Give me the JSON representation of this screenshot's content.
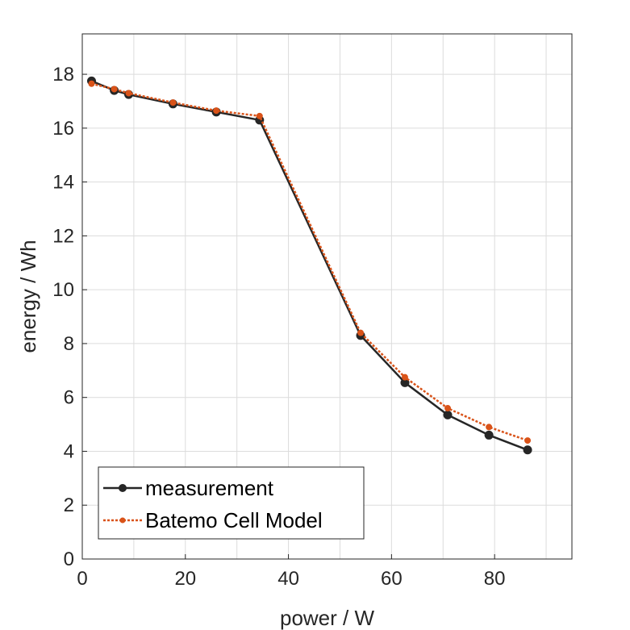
{
  "chart_data": {
    "type": "line",
    "title": "",
    "xlabel": "power / W",
    "ylabel": "energy / Wh",
    "xlim": [
      0,
      95
    ],
    "ylim": [
      0,
      19.5
    ],
    "xticks": [
      0,
      20,
      40,
      60,
      80
    ],
    "yticks": [
      0,
      2,
      4,
      6,
      8,
      10,
      12,
      14,
      16,
      18
    ],
    "grid": true,
    "legend_position": "bottom-left",
    "series": [
      {
        "name": "measurement",
        "color": "#262626",
        "line_style": "solid",
        "marker": "circle",
        "x": [
          1.8,
          6.2,
          9.0,
          17.6,
          26.0,
          34.4,
          54.0,
          62.6,
          70.9,
          78.9,
          86.4
        ],
        "y": [
          17.75,
          17.4,
          17.25,
          16.9,
          16.6,
          16.3,
          8.3,
          6.55,
          5.35,
          4.6,
          4.05
        ]
      },
      {
        "name": "Batemo Cell Model",
        "color": "#D95319",
        "line_style": "dotted",
        "marker": "dot",
        "x": [
          1.8,
          6.2,
          9.0,
          17.6,
          26.0,
          34.4,
          54.0,
          62.6,
          70.9,
          78.9,
          86.4
        ],
        "y": [
          17.65,
          17.45,
          17.3,
          16.95,
          16.65,
          16.45,
          8.4,
          6.75,
          5.6,
          4.9,
          4.4
        ]
      }
    ]
  }
}
